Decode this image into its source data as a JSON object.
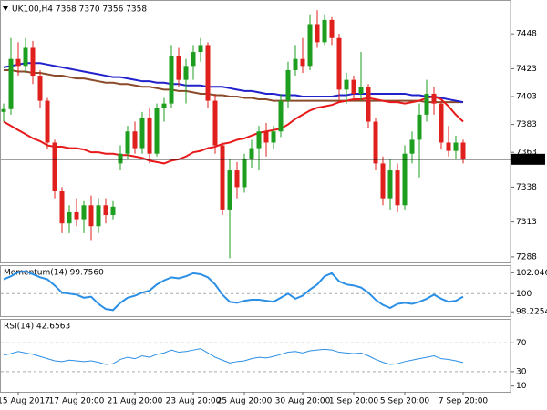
{
  "chart_data": [
    {
      "type": "candlestick",
      "title": "UK100,H4  7368 7370 7356 7358",
      "categories": [
        null,
        null,
        "15 Aug 2017",
        null,
        null,
        null,
        null,
        null,
        null,
        null,
        "17 Aug 20:00",
        null,
        null,
        null,
        null,
        null,
        null,
        null,
        "21 Aug 20:00",
        null,
        null,
        null,
        null,
        null,
        null,
        null,
        "23 Aug 20:00",
        null,
        null,
        null,
        null,
        null,
        null,
        "25 Aug 20:00",
        null,
        null,
        null,
        null,
        null,
        null,
        null,
        "30 Aug 20:00",
        null,
        null,
        null,
        null,
        null,
        null,
        "1 Sep 20:00",
        null,
        null,
        null,
        null,
        null,
        null,
        "5 Sep 20:00",
        null,
        null,
        null,
        null,
        null,
        null,
        null,
        "7 Sep 20:00"
      ],
      "open": [
        7392,
        7394,
        7430,
        7425,
        7438,
        7418,
        7400,
        7370,
        7335,
        7312,
        7320,
        7315,
        7325,
        7310,
        7325,
        7318,
        7355,
        7362,
        7378,
        7366,
        7388,
        7362,
        7395,
        7398,
        7432,
        7415,
        7425,
        7435,
        7440,
        7400,
        7368,
        7322,
        7350,
        7338,
        7358,
        7366,
        7378,
        7370,
        7378,
        7400,
        7422,
        7430,
        7425,
        7455,
        7442,
        7458,
        7445,
        7408,
        7415,
        7405,
        7410,
        7385,
        7355,
        7330,
        7350,
        7325,
        7362,
        7372,
        7390,
        7405,
        7398,
        7370,
        7364,
        7370
      ],
      "high": [
        7398,
        7445,
        7442,
        7445,
        7443,
        7422,
        7402,
        7372,
        7338,
        7325,
        7330,
        7328,
        7332,
        7330,
        7330,
        7328,
        7368,
        7382,
        7385,
        7392,
        7395,
        7398,
        7402,
        7440,
        7438,
        7430,
        7440,
        7445,
        7442,
        7405,
        7370,
        7358,
        7356,
        7362,
        7372,
        7382,
        7384,
        7382,
        7405,
        7428,
        7440,
        7445,
        7462,
        7465,
        7462,
        7460,
        7448,
        7420,
        7418,
        7435,
        7412,
        7388,
        7360,
        7358,
        7355,
        7368,
        7378,
        7398,
        7415,
        7410,
        7400,
        7382,
        7375,
        7372
      ],
      "low": [
        7385,
        7390,
        7418,
        7420,
        7412,
        7395,
        7365,
        7330,
        7305,
        7305,
        7310,
        7305,
        7300,
        7305,
        7312,
        7315,
        7350,
        7358,
        7362,
        7362,
        7355,
        7360,
        7385,
        7395,
        7410,
        7398,
        7415,
        7428,
        7395,
        7362,
        7318,
        7287,
        7330,
        7334,
        7352,
        7350,
        7360,
        7365,
        7374,
        7395,
        7418,
        7420,
        7422,
        7438,
        7440,
        7440,
        7400,
        7398,
        7400,
        7400,
        7380,
        7350,
        7325,
        7322,
        7320,
        7322,
        7355,
        7345,
        7385,
        7390,
        7365,
        7360,
        7358,
        7355
      ],
      "close": [
        7394,
        7430,
        7425,
        7438,
        7418,
        7400,
        7370,
        7335,
        7312,
        7320,
        7315,
        7325,
        7310,
        7325,
        7318,
        7324,
        7362,
        7378,
        7366,
        7388,
        7362,
        7395,
        7398,
        7432,
        7415,
        7425,
        7435,
        7440,
        7400,
        7368,
        7322,
        7350,
        7338,
        7358,
        7366,
        7378,
        7370,
        7378,
        7400,
        7422,
        7430,
        7425,
        7455,
        7442,
        7458,
        7445,
        7408,
        7415,
        7405,
        7410,
        7385,
        7355,
        7330,
        7350,
        7325,
        7362,
        7372,
        7390,
        7405,
        7398,
        7370,
        7364,
        7370,
        7358
      ],
      "up_color": "#1e9e1e",
      "down_color": "#e0201c",
      "lines": [
        {
          "color": "#8a4b2a",
          "values": [
            7422,
            7422,
            7421,
            7421,
            7420,
            7420,
            7419,
            7418,
            7418,
            7417,
            7416,
            7416,
            7415,
            7414,
            7413,
            7413,
            7412,
            7412,
            7411,
            7410,
            7410,
            7409,
            7408,
            7408,
            7407,
            7407,
            7406,
            7405,
            7405,
            7404,
            7404,
            7403,
            7403,
            7402,
            7402,
            7401,
            7401,
            7400,
            7400,
            7400,
            7400,
            7400,
            7400,
            7400,
            7400,
            7400,
            7400,
            7400,
            7400,
            7400,
            7400,
            7400,
            7400,
            7400,
            7400,
            7400,
            7400,
            7400,
            7399,
            7399,
            7399,
            7399,
            7399,
            7399
          ]
        },
        {
          "color": "#2222cc",
          "values": [
            7424,
            7425,
            7426,
            7427,
            7427,
            7427,
            7426,
            7425,
            7424,
            7423,
            7422,
            7421,
            7420,
            7419,
            7418,
            7417,
            7417,
            7416,
            7415,
            7414,
            7414,
            7413,
            7413,
            7412,
            7412,
            7411,
            7411,
            7411,
            7410,
            7410,
            7410,
            7409,
            7408,
            7407,
            7407,
            7406,
            7405,
            7405,
            7404,
            7404,
            7404,
            7403,
            7403,
            7403,
            7403,
            7403,
            7404,
            7404,
            7405,
            7405,
            7405,
            7405,
            7405,
            7405,
            7405,
            7405,
            7404,
            7404,
            7403,
            7403,
            7402,
            7401,
            7400,
            7399
          ]
        },
        {
          "color": "#e8191b",
          "values": [
            7385,
            7382,
            7379,
            7376,
            7373,
            7371,
            7368,
            7367,
            7367,
            7366,
            7366,
            7365,
            7363,
            7363,
            7362,
            7362,
            7361,
            7361,
            7360,
            7359,
            7357,
            7356,
            7355,
            7357,
            7358,
            7360,
            7363,
            7364,
            7366,
            7367,
            7369,
            7370,
            7372,
            7373,
            7375,
            7377,
            7378,
            7379,
            7380,
            7383,
            7387,
            7390,
            7393,
            7395,
            7396,
            7397,
            7399,
            7400,
            7401,
            7401,
            7402,
            7401,
            7400,
            7399,
            7399,
            7398,
            7399,
            7400,
            7402,
            7403,
            7401,
            7396,
            7390,
            7385
          ]
        }
      ],
      "ylim": [
        7284,
        7471
      ],
      "yticks": [
        7288,
        7313,
        7338,
        7363,
        7383,
        7403,
        7423,
        7448
      ],
      "current_price": 7358
    },
    {
      "type": "line",
      "title": "Momentum(14) 99.7560",
      "color": "#2b8fe6",
      "values": [
        101.4,
        101.7,
        102.1,
        102.2,
        101.9,
        101.6,
        101.4,
        100.8,
        100.1,
        100.0,
        99.9,
        99.6,
        99.7,
        99.0,
        98.5,
        98.4,
        99.1,
        99.6,
        99.8,
        100.1,
        100.3,
        100.9,
        101.3,
        101.6,
        101.5,
        101.7,
        102.0,
        101.9,
        101.6,
        100.9,
        99.9,
        99.2,
        99.1,
        99.3,
        99.4,
        99.4,
        99.3,
        99.2,
        99.6,
        100.0,
        99.5,
        99.8,
        100.4,
        100.9,
        101.7,
        102.0,
        101.2,
        100.9,
        100.8,
        100.6,
        100.1,
        99.4,
        98.9,
        98.6,
        99.0,
        99.1,
        99.0,
        99.2,
        99.5,
        99.9,
        99.5,
        99.2,
        99.3,
        99.7
      ],
      "ylim": [
        97.8,
        102.7
      ],
      "yticks": [
        98.2254,
        100,
        102.0463
      ],
      "levels": [
        100
      ]
    },
    {
      "type": "line",
      "title": "RSI(14) 42.6563",
      "color": "#2b8fe6",
      "values": [
        53,
        55,
        58,
        56,
        54,
        51,
        48,
        45,
        44,
        46,
        45,
        44,
        45,
        43,
        40,
        41,
        47,
        50,
        48,
        52,
        50,
        54,
        56,
        60,
        57,
        58,
        60,
        62,
        56,
        50,
        46,
        42,
        44,
        45,
        48,
        50,
        49,
        51,
        54,
        57,
        58,
        56,
        59,
        60,
        61,
        60,
        57,
        56,
        55,
        56,
        52,
        47,
        43,
        40,
        41,
        44,
        46,
        48,
        50,
        52,
        48,
        47,
        45,
        42.66
      ],
      "ylim": [
        2,
        102
      ],
      "yticks": [
        10,
        30,
        70
      ],
      "levels": [
        30,
        70
      ]
    }
  ]
}
